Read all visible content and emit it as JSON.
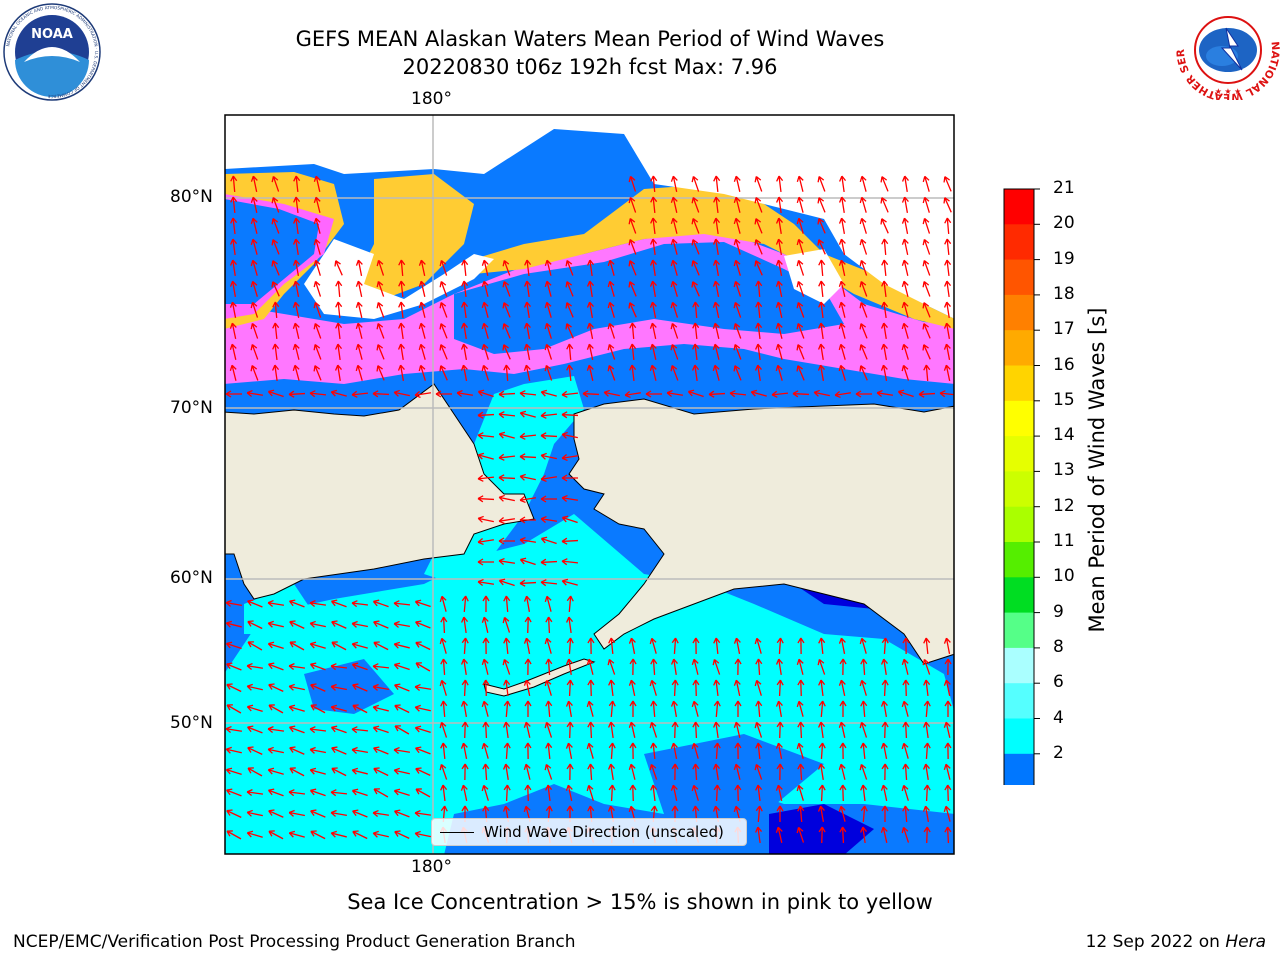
{
  "header": {
    "title_line1": "GEFS MEAN Alaskan Waters Mean Period of Wind Waves",
    "title_line2": "20220830 t06z 192h fcst   Max: 7.96"
  },
  "logos": {
    "noaa_text": "NOAA",
    "noaa_ring_text": "NATIONAL OCEANIC AND ATMOSPHERIC ADMINISTRATION · U.S. DEPARTMENT OF COMMERCE",
    "nws_ring_text": "NATIONAL WEATHER SERVICE"
  },
  "map": {
    "lon_label_top": "180°",
    "lon_label_bottom": "180°",
    "lat_labels": [
      "80°N",
      "70°N",
      "60°N",
      "50°N"
    ],
    "legend": "Wind Wave Direction (unscaled)",
    "colors": {
      "land": "#efecdc",
      "ocean_2_4": "#0a7aff",
      "ocean_4_6": "#00ffff",
      "ocean_6_8": "#4cf5f5",
      "ice_pink": "#ff66ff",
      "ice_yellow": "#ffcc33",
      "arrows": "#ff0000",
      "grid": "#bbbbbb"
    }
  },
  "colorbar": {
    "title": "Mean Period of Wind Waves [s]",
    "ticks": [
      "21",
      "20",
      "19",
      "18",
      "17",
      "16",
      "15",
      "14",
      "13",
      "12",
      "11",
      "10",
      "9",
      "8",
      "6",
      "4",
      "2"
    ],
    "colors": [
      "#ff0000",
      "#ff2a00",
      "#ff5500",
      "#ff8000",
      "#ffaa00",
      "#ffd400",
      "#ffff00",
      "#e6ff00",
      "#ccff00",
      "#aaff00",
      "#55ee00",
      "#00dd22",
      "#55ff88",
      "#aaffff",
      "#55ffff",
      "#00ffff",
      "#0077ff"
    ],
    "under_color": "#0000ee"
  },
  "caption": "Sea Ice Concentration > 15% is shown in pink to yellow",
  "footer": {
    "left": "NCEP/EMC/Verification Post Processing Product Generation Branch",
    "right_date": "12 Sep 2022 on ",
    "right_host": "Hera"
  }
}
